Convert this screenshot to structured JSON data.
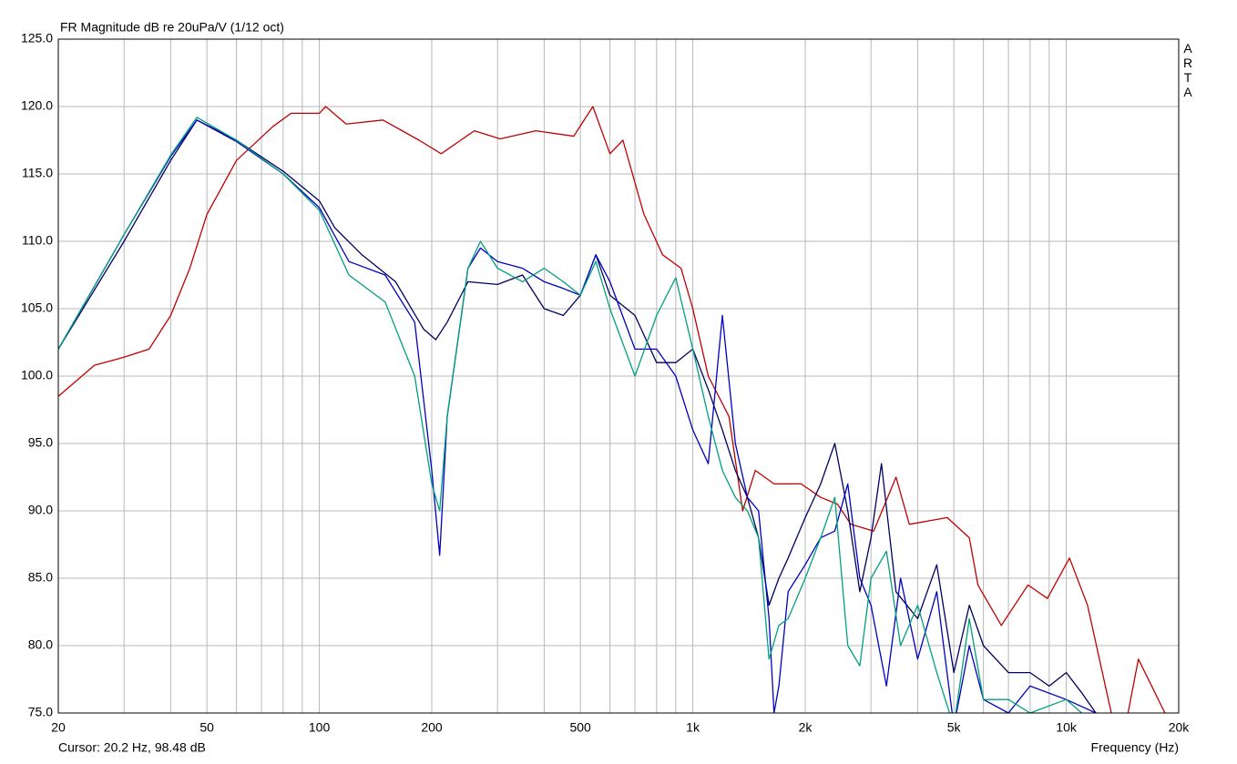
{
  "chart_data": {
    "type": "line",
    "title": "FR Magnitude dB re 20uPa/V (1/12 oct)",
    "side_label": "ARTA",
    "cursor_text": "Cursor: 20.2 Hz, 98.48 dB",
    "x_label": "Frequency (Hz)",
    "xscale": "log",
    "grid": true,
    "xlim": [
      20,
      20000
    ],
    "ylim": [
      75,
      125
    ],
    "xticks": [
      20,
      50,
      100,
      200,
      500,
      {
        "value": 1000,
        "label": "1k"
      },
      {
        "value": 2000,
        "label": "2k"
      },
      {
        "value": 5000,
        "label": "5k"
      },
      {
        "value": 10000,
        "label": "10k"
      },
      {
        "value": 20000,
        "label": "20k"
      }
    ],
    "x_minor_grid": [
      30,
      40,
      60,
      70,
      80,
      90,
      300,
      400,
      600,
      700,
      800,
      900,
      3000,
      4000,
      6000,
      7000,
      8000,
      9000
    ],
    "yticks": [
      {
        "value": 75,
        "label": "75.0"
      },
      {
        "value": 80,
        "label": "80.0"
      },
      {
        "value": 85,
        "label": "85.0"
      },
      {
        "value": 90,
        "label": "90.0"
      },
      {
        "value": 95,
        "label": "95.0"
      },
      {
        "value": 100,
        "label": "100.0"
      },
      {
        "value": 105,
        "label": "105.0"
      },
      {
        "value": 110,
        "label": "110.0"
      },
      {
        "value": 115,
        "label": "115.0"
      },
      {
        "value": 120,
        "label": "120.0"
      },
      {
        "value": 125,
        "label": "125.0"
      }
    ],
    "series": [
      {
        "color": "#c00000",
        "x": [
          20,
          25,
          30,
          35,
          40,
          45,
          50,
          60,
          75,
          84,
          100,
          104,
          118,
          148,
          185,
          212,
          260,
          305,
          380,
          480,
          540,
          600,
          650,
          740,
          830,
          930,
          1000,
          1100,
          1250,
          1360,
          1470,
          1650,
          1950,
          2200,
          2440,
          2650,
          3050,
          3500,
          3800,
          4800,
          5500,
          5800,
          6700,
          7900,
          8900,
          10200,
          11400,
          13200,
          14400,
          15600,
          18000,
          20000
        ],
        "values": [
          98.5,
          100.8,
          101.4,
          102,
          104.5,
          108,
          112,
          116,
          118.5,
          119.5,
          119.5,
          120,
          118.7,
          119,
          117.5,
          116.5,
          118.2,
          117.6,
          118.2,
          117.8,
          120,
          116.5,
          117.5,
          112,
          109,
          108,
          105,
          100,
          97,
          90,
          93,
          92,
          92,
          91,
          90.5,
          89,
          88.5,
          92.5,
          89,
          89.5,
          88,
          84.5,
          81.5,
          84.5,
          83.5,
          86.5,
          83,
          75,
          74,
          79,
          75.5,
          73
        ]
      },
      {
        "color": "#000060",
        "x": [
          20,
          30,
          40,
          47,
          60,
          80,
          100,
          110,
          130,
          160,
          190,
          205,
          220,
          250,
          300,
          350,
          400,
          450,
          500,
          550,
          600,
          700,
          800,
          900,
          1000,
          1100,
          1200,
          1300,
          1400,
          1500,
          1600,
          1700,
          1800,
          2000,
          2200,
          2400,
          2600,
          2800,
          3000,
          3200,
          3500,
          4000,
          4500,
          5000,
          5500,
          6000,
          7000,
          8000,
          9000,
          10000,
          11000,
          12000,
          14000
        ],
        "values": [
          102,
          110,
          116,
          119,
          117.5,
          115.2,
          113,
          111,
          109,
          107,
          103.5,
          102.7,
          104,
          107,
          106.8,
          107.5,
          105,
          104.5,
          106,
          109,
          106,
          104.5,
          101,
          101,
          102,
          99,
          96,
          93,
          91,
          88,
          83,
          85,
          86.5,
          89.5,
          92,
          95,
          90,
          84,
          88,
          93.5,
          84,
          82,
          86,
          78,
          83,
          80,
          78,
          78,
          77,
          78,
          76.5,
          75,
          74
        ]
      },
      {
        "color": "#0000c0",
        "x": [
          20,
          30,
          40,
          47,
          60,
          80,
          100,
          120,
          150,
          180,
          200,
          210,
          220,
          250,
          270,
          300,
          350,
          400,
          450,
          500,
          550,
          600,
          700,
          800,
          900,
          1000,
          1100,
          1200,
          1300,
          1400,
          1500,
          1600,
          1650,
          1700,
          1800,
          2000,
          2200,
          2400,
          2600,
          2800,
          3000,
          3300,
          3600,
          4000,
          4500,
          5000,
          5500,
          6000,
          7000,
          8000,
          10000,
          12000,
          14000
        ],
        "values": [
          102,
          110.5,
          116.3,
          119,
          117.4,
          115,
          112.5,
          108.5,
          107.5,
          104,
          93,
          86.7,
          97,
          108,
          109.5,
          108.5,
          108,
          107,
          106.5,
          106,
          109,
          107,
          102,
          102,
          100,
          96,
          93.5,
          104.5,
          95,
          91,
          90,
          82,
          75,
          77,
          84,
          86,
          88,
          88.5,
          92,
          85,
          83,
          77,
          85,
          79,
          84,
          74,
          80,
          76,
          75,
          77,
          76,
          75,
          73
        ]
      },
      {
        "color": "#00a080",
        "x": [
          20,
          30,
          40,
          47,
          60,
          80,
          100,
          120,
          150,
          180,
          200,
          210,
          220,
          250,
          270,
          300,
          350,
          400,
          450,
          500,
          550,
          600,
          700,
          800,
          900,
          1000,
          1100,
          1200,
          1300,
          1400,
          1500,
          1600,
          1700,
          1800,
          2000,
          2200,
          2400,
          2600,
          2800,
          3000,
          3300,
          3600,
          4000,
          4500,
          5000,
          5500,
          6000,
          7000,
          8000,
          10000,
          11000,
          12000
        ],
        "values": [
          102,
          110.5,
          116.4,
          119.2,
          117.5,
          115,
          112.3,
          107.5,
          105.5,
          100,
          92,
          90,
          97,
          108,
          110,
          108,
          107,
          108,
          107,
          106,
          108.5,
          105,
          100,
          104.5,
          107.3,
          102,
          97,
          93,
          91,
          90,
          88,
          79,
          81.5,
          82,
          85,
          88,
          91,
          80,
          78.5,
          85,
          87,
          80,
          83,
          78,
          74,
          82,
          76,
          76,
          75,
          76,
          75,
          74
        ]
      }
    ]
  }
}
